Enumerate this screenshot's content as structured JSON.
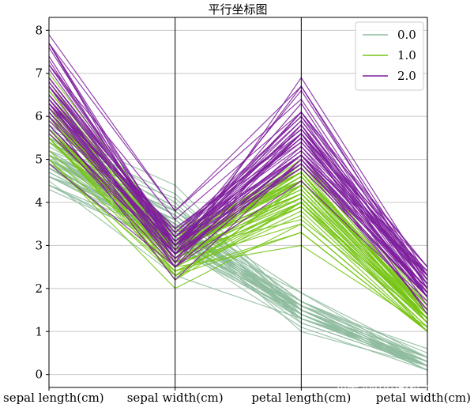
{
  "chart_data": {
    "type": "parallel_coordinates",
    "title": "平行坐标图",
    "axes": [
      "sepal length(cm)",
      "sepal width(cm)",
      "petal length(cm)",
      "petal width(cm)"
    ],
    "ylim": [
      -0.3,
      8.3
    ],
    "yticks": [
      0,
      1,
      2,
      3,
      4,
      5,
      6,
      7,
      8
    ],
    "grid": true,
    "legend_position": "top-right",
    "series": [
      {
        "name": "0.0",
        "color": "#8fbc9f",
        "lines": [
          [
            5.1,
            3.5,
            1.4,
            0.2
          ],
          [
            4.9,
            3.0,
            1.4,
            0.2
          ],
          [
            4.7,
            3.2,
            1.3,
            0.2
          ],
          [
            4.6,
            3.1,
            1.5,
            0.2
          ],
          [
            5.0,
            3.6,
            1.4,
            0.2
          ],
          [
            5.4,
            3.9,
            1.7,
            0.4
          ],
          [
            4.6,
            3.4,
            1.4,
            0.3
          ],
          [
            5.0,
            3.4,
            1.5,
            0.2
          ],
          [
            4.4,
            2.9,
            1.4,
            0.2
          ],
          [
            4.9,
            3.1,
            1.5,
            0.1
          ],
          [
            5.4,
            3.7,
            1.5,
            0.2
          ],
          [
            4.8,
            3.4,
            1.6,
            0.2
          ],
          [
            4.8,
            3.0,
            1.4,
            0.1
          ],
          [
            4.3,
            3.0,
            1.1,
            0.1
          ],
          [
            5.8,
            4.0,
            1.2,
            0.2
          ],
          [
            5.7,
            4.4,
            1.5,
            0.4
          ],
          [
            5.4,
            3.9,
            1.3,
            0.4
          ],
          [
            5.1,
            3.5,
            1.4,
            0.3
          ],
          [
            5.7,
            3.8,
            1.7,
            0.3
          ],
          [
            5.1,
            3.8,
            1.5,
            0.3
          ],
          [
            5.4,
            3.4,
            1.7,
            0.2
          ],
          [
            5.1,
            3.7,
            1.5,
            0.4
          ],
          [
            4.6,
            3.6,
            1.0,
            0.2
          ],
          [
            5.1,
            3.3,
            1.7,
            0.5
          ],
          [
            4.8,
            3.4,
            1.9,
            0.2
          ],
          [
            5.0,
            3.0,
            1.6,
            0.2
          ],
          [
            5.0,
            3.4,
            1.6,
            0.4
          ],
          [
            5.2,
            3.5,
            1.5,
            0.2
          ],
          [
            5.2,
            3.4,
            1.4,
            0.2
          ],
          [
            4.7,
            3.2,
            1.6,
            0.2
          ],
          [
            4.8,
            3.1,
            1.6,
            0.2
          ],
          [
            5.4,
            3.4,
            1.5,
            0.4
          ],
          [
            5.2,
            4.1,
            1.5,
            0.1
          ],
          [
            5.5,
            4.2,
            1.4,
            0.2
          ],
          [
            4.9,
            3.1,
            1.5,
            0.2
          ],
          [
            5.0,
            3.2,
            1.2,
            0.2
          ],
          [
            5.5,
            3.5,
            1.3,
            0.2
          ],
          [
            4.9,
            3.6,
            1.4,
            0.1
          ],
          [
            4.4,
            3.0,
            1.3,
            0.2
          ],
          [
            5.1,
            3.4,
            1.5,
            0.2
          ],
          [
            5.0,
            3.5,
            1.3,
            0.3
          ],
          [
            4.5,
            2.3,
            1.3,
            0.3
          ],
          [
            4.4,
            3.2,
            1.3,
            0.2
          ],
          [
            5.0,
            3.5,
            1.6,
            0.6
          ],
          [
            5.1,
            3.8,
            1.9,
            0.4
          ],
          [
            4.8,
            3.0,
            1.4,
            0.3
          ],
          [
            5.1,
            3.8,
            1.6,
            0.2
          ],
          [
            4.6,
            3.2,
            1.4,
            0.2
          ],
          [
            5.3,
            3.7,
            1.5,
            0.2
          ],
          [
            5.0,
            3.3,
            1.4,
            0.2
          ]
        ]
      },
      {
        "name": "1.0",
        "color": "#76c414",
        "lines": [
          [
            7.0,
            3.2,
            4.7,
            1.4
          ],
          [
            6.4,
            3.2,
            4.5,
            1.5
          ],
          [
            6.9,
            3.1,
            4.9,
            1.5
          ],
          [
            5.5,
            2.3,
            4.0,
            1.3
          ],
          [
            6.5,
            2.8,
            4.6,
            1.5
          ],
          [
            5.7,
            2.8,
            4.5,
            1.3
          ],
          [
            6.3,
            3.3,
            4.7,
            1.6
          ],
          [
            4.9,
            2.4,
            3.3,
            1.0
          ],
          [
            6.6,
            2.9,
            4.6,
            1.3
          ],
          [
            5.2,
            2.7,
            3.9,
            1.4
          ],
          [
            5.0,
            2.0,
            3.5,
            1.0
          ],
          [
            5.9,
            3.0,
            4.2,
            1.5
          ],
          [
            6.0,
            2.2,
            4.0,
            1.0
          ],
          [
            6.1,
            2.9,
            4.7,
            1.4
          ],
          [
            5.6,
            2.9,
            3.6,
            1.3
          ],
          [
            6.7,
            3.1,
            4.4,
            1.4
          ],
          [
            5.6,
            3.0,
            4.5,
            1.5
          ],
          [
            5.8,
            2.7,
            4.1,
            1.0
          ],
          [
            6.2,
            2.2,
            4.5,
            1.5
          ],
          [
            5.6,
            2.5,
            3.9,
            1.1
          ],
          [
            5.9,
            3.2,
            4.8,
            1.8
          ],
          [
            6.1,
            2.8,
            4.0,
            1.3
          ],
          [
            6.3,
            2.5,
            4.9,
            1.5
          ],
          [
            6.1,
            2.8,
            4.7,
            1.2
          ],
          [
            6.4,
            2.9,
            4.3,
            1.3
          ],
          [
            6.6,
            3.0,
            4.4,
            1.4
          ],
          [
            6.8,
            2.8,
            4.8,
            1.4
          ],
          [
            6.7,
            3.0,
            5.0,
            1.7
          ],
          [
            6.0,
            2.9,
            4.5,
            1.5
          ],
          [
            5.7,
            2.6,
            3.5,
            1.0
          ],
          [
            5.5,
            2.4,
            3.8,
            1.1
          ],
          [
            5.5,
            2.4,
            3.7,
            1.0
          ],
          [
            5.8,
            2.7,
            3.9,
            1.2
          ],
          [
            6.0,
            2.7,
            5.1,
            1.6
          ],
          [
            5.4,
            3.0,
            4.5,
            1.5
          ],
          [
            6.0,
            3.4,
            4.5,
            1.6
          ],
          [
            6.7,
            3.1,
            4.7,
            1.5
          ],
          [
            6.3,
            2.3,
            4.4,
            1.3
          ],
          [
            5.6,
            3.0,
            4.1,
            1.3
          ],
          [
            5.5,
            2.5,
            4.0,
            1.3
          ],
          [
            5.5,
            2.6,
            4.4,
            1.2
          ],
          [
            6.1,
            3.0,
            4.6,
            1.4
          ],
          [
            5.8,
            2.6,
            4.0,
            1.2
          ],
          [
            5.0,
            2.3,
            3.3,
            1.0
          ],
          [
            5.6,
            2.7,
            4.2,
            1.3
          ],
          [
            5.7,
            3.0,
            4.2,
            1.2
          ],
          [
            5.7,
            2.9,
            4.2,
            1.3
          ],
          [
            6.2,
            2.9,
            4.3,
            1.3
          ],
          [
            5.1,
            2.5,
            3.0,
            1.1
          ],
          [
            5.7,
            2.8,
            4.1,
            1.3
          ]
        ]
      },
      {
        "name": "2.0",
        "color": "#7e1e9c",
        "lines": [
          [
            6.3,
            3.3,
            6.0,
            2.5
          ],
          [
            5.8,
            2.7,
            5.1,
            1.9
          ],
          [
            7.1,
            3.0,
            5.9,
            2.1
          ],
          [
            6.3,
            2.9,
            5.6,
            1.8
          ],
          [
            6.5,
            3.0,
            5.8,
            2.2
          ],
          [
            7.6,
            3.0,
            6.6,
            2.1
          ],
          [
            4.9,
            2.5,
            4.5,
            1.7
          ],
          [
            7.3,
            2.9,
            6.3,
            1.8
          ],
          [
            6.7,
            2.5,
            5.8,
            1.8
          ],
          [
            7.2,
            3.6,
            6.1,
            2.5
          ],
          [
            6.5,
            3.2,
            5.1,
            2.0
          ],
          [
            6.4,
            2.7,
            5.3,
            1.9
          ],
          [
            6.8,
            3.0,
            5.5,
            2.1
          ],
          [
            5.7,
            2.5,
            5.0,
            2.0
          ],
          [
            5.8,
            2.8,
            5.1,
            2.4
          ],
          [
            6.4,
            3.2,
            5.3,
            2.3
          ],
          [
            6.5,
            3.0,
            5.5,
            1.8
          ],
          [
            7.7,
            3.8,
            6.7,
            2.2
          ],
          [
            7.7,
            2.6,
            6.9,
            2.3
          ],
          [
            6.0,
            2.2,
            5.0,
            1.5
          ],
          [
            6.9,
            3.2,
            5.7,
            2.3
          ],
          [
            5.6,
            2.8,
            4.9,
            2.0
          ],
          [
            7.7,
            2.8,
            6.7,
            2.0
          ],
          [
            6.3,
            2.7,
            4.9,
            1.8
          ],
          [
            6.7,
            3.3,
            5.7,
            2.1
          ],
          [
            7.2,
            3.2,
            6.0,
            1.8
          ],
          [
            6.2,
            2.8,
            4.8,
            1.8
          ],
          [
            6.1,
            3.0,
            4.9,
            1.8
          ],
          [
            6.4,
            2.8,
            5.6,
            2.1
          ],
          [
            7.2,
            3.0,
            5.8,
            1.6
          ],
          [
            7.4,
            2.8,
            6.1,
            1.9
          ],
          [
            7.9,
            3.8,
            6.4,
            2.0
          ],
          [
            6.4,
            2.8,
            5.6,
            2.2
          ],
          [
            6.3,
            2.8,
            5.1,
            1.5
          ],
          [
            6.1,
            2.6,
            5.6,
            1.4
          ],
          [
            7.7,
            3.0,
            6.1,
            2.3
          ],
          [
            6.3,
            3.4,
            5.6,
            2.4
          ],
          [
            6.4,
            3.1,
            5.5,
            1.8
          ],
          [
            6.0,
            3.0,
            4.8,
            1.8
          ],
          [
            6.9,
            3.1,
            5.4,
            2.1
          ],
          [
            6.7,
            3.1,
            5.6,
            2.4
          ],
          [
            6.9,
            3.1,
            5.1,
            2.3
          ],
          [
            5.8,
            2.7,
            5.1,
            1.9
          ],
          [
            6.8,
            3.2,
            5.9,
            2.3
          ],
          [
            6.7,
            3.3,
            5.7,
            2.5
          ],
          [
            6.7,
            3.0,
            5.2,
            2.3
          ],
          [
            6.3,
            2.5,
            5.0,
            1.9
          ],
          [
            6.5,
            3.0,
            5.2,
            2.0
          ],
          [
            6.2,
            3.4,
            5.4,
            2.3
          ],
          [
            5.9,
            3.0,
            5.1,
            1.8
          ]
        ]
      }
    ]
  },
  "watermark": "知乎 @小小数据分析"
}
